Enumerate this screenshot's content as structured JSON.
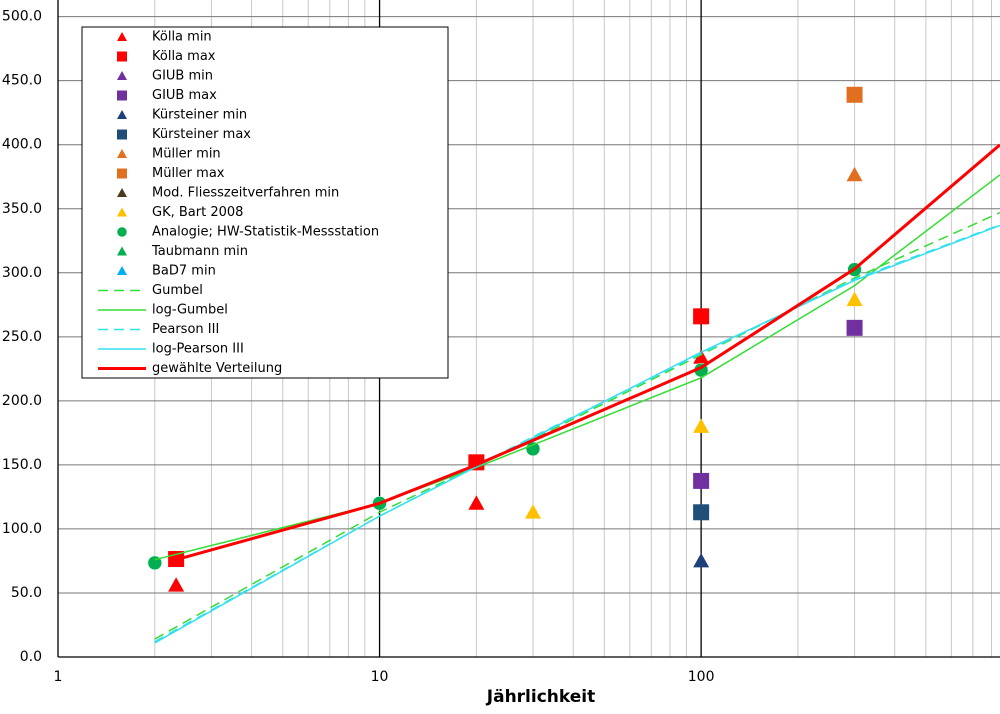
{
  "chart_data": {
    "type": "line",
    "x_label": "Jährlichkeit",
    "xscale": "log",
    "xlim": [
      1,
      850
    ],
    "xticks": [
      1,
      10,
      100
    ],
    "xminor": [
      2,
      3,
      4,
      5,
      6,
      7,
      8,
      9,
      20,
      30,
      40,
      50,
      60,
      70,
      80,
      90,
      200,
      300,
      400,
      500,
      600,
      700,
      800
    ],
    "ylim": [
      0,
      513
    ],
    "yticks": [
      {
        "value": 0,
        "label": "0.0"
      },
      {
        "value": 50,
        "label": "50.0"
      },
      {
        "value": 100,
        "label": "100.0"
      },
      {
        "value": 150,
        "label": "150.0"
      },
      {
        "value": 200,
        "label": "200.0"
      },
      {
        "value": 250,
        "label": "250.0"
      },
      {
        "value": 300,
        "label": "300.0"
      },
      {
        "value": 350,
        "label": "350.0"
      },
      {
        "value": 400,
        "label": "400.0"
      },
      {
        "value": 450,
        "label": "450.0"
      },
      {
        "value": 500,
        "label": "500.0"
      }
    ],
    "grid": true,
    "series": [
      {
        "name": "Kölla min",
        "color": "#ff0000",
        "style": "triangle",
        "x": [
          2.33,
          20,
          100
        ],
        "values": [
          56,
          120,
          234
        ]
      },
      {
        "name": "Kölla max",
        "color": "#ff0000",
        "style": "square",
        "x": [
          2.33,
          20,
          100
        ],
        "values": [
          76.5,
          152,
          266
        ]
      },
      {
        "name": "GIUB min",
        "color": "#7030a0",
        "style": "triangle",
        "x": [],
        "values": []
      },
      {
        "name": "GIUB max",
        "color": "#7030a0",
        "style": "square",
        "x": [
          100,
          300
        ],
        "values": [
          137.5,
          257
        ]
      },
      {
        "name": "Kürsteiner min",
        "color": "#1f3f7a",
        "style": "triangle",
        "x": [
          100
        ],
        "values": [
          75
        ]
      },
      {
        "name": "Kürsteiner max",
        "color": "#1f4e79",
        "style": "square",
        "x": [
          100
        ],
        "values": [
          113
        ]
      },
      {
        "name": "Müller min",
        "color": "#e07020",
        "style": "triangle",
        "x": [
          300
        ],
        "values": [
          376.5
        ]
      },
      {
        "name": "Müller max",
        "color": "#e07020",
        "style": "square",
        "x": [
          300
        ],
        "values": [
          439
        ]
      },
      {
        "name": "Mod. Fliesszeitverfahren min",
        "color": "#4a3a20",
        "style": "triangle",
        "x": [],
        "values": []
      },
      {
        "name": "GK, Bart 2008",
        "color": "#ffc000",
        "style": "triangle",
        "x": [
          30,
          100,
          300
        ],
        "values": [
          113,
          180,
          279
        ]
      },
      {
        "name": "Analogie; HW-Statistik-Messstation",
        "color": "#00b050",
        "style": "circle",
        "x": [
          2,
          10,
          30,
          100,
          300
        ],
        "values": [
          73.5,
          120,
          162.5,
          224,
          302.5
        ]
      },
      {
        "name": "Taubmann min",
        "color": "#00b050",
        "style": "triangle",
        "x": [],
        "values": []
      },
      {
        "name": "BaD7 min",
        "color": "#00b0f0",
        "style": "triangle",
        "x": [],
        "values": []
      },
      {
        "name": "Gumbel",
        "color": "#33dd33",
        "style": "dashed",
        "x": [
          2,
          10,
          30,
          100,
          300,
          850
        ],
        "values": [
          14,
          113,
          170,
          236,
          296,
          347
        ]
      },
      {
        "name": "log-Gumbel",
        "color": "#33dd33",
        "style": "solid",
        "x": [
          2,
          10,
          20,
          100,
          300,
          850
        ],
        "values": [
          76,
          120,
          148,
          218,
          290,
          376.5
        ]
      },
      {
        "name": "Pearson III",
        "color": "#33e0f0",
        "style": "dashed",
        "x": [
          2,
          10,
          30,
          100,
          300,
          850
        ],
        "values": [
          12,
          110,
          172,
          237,
          295,
          337.5
        ]
      },
      {
        "name": "log-Pearson III",
        "color": "#33e0f0",
        "style": "solid",
        "x": [
          2,
          10,
          100,
          300,
          850
        ],
        "values": [
          11,
          110,
          238,
          294,
          337
        ]
      },
      {
        "name": "gewählte Verteilung",
        "color": "#ff0000",
        "style": "thick",
        "x": [
          2.33,
          10,
          20,
          100,
          300,
          850
        ],
        "values": [
          76,
          120,
          150,
          226,
          303,
          400
        ]
      }
    ]
  }
}
